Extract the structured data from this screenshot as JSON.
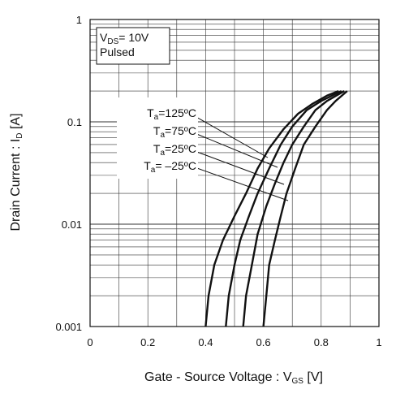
{
  "chart_data": {
    "type": "line",
    "xlabel": {
      "main": "Gate - Source Voltage : V",
      "sub": "GS",
      "unit": " [V]"
    },
    "ylabel": {
      "main": "Drain Current : I",
      "sub": "D",
      "unit": " [A]"
    },
    "xlim": [
      0,
      1
    ],
    "ylim": [
      0.001,
      1
    ],
    "yscale": "log",
    "grid": true,
    "x_ticks": [
      {
        "value": 0,
        "label": "0"
      },
      {
        "value": 0.2,
        "label": "0.2"
      },
      {
        "value": 0.4,
        "label": "0.4"
      },
      {
        "value": 0.6,
        "label": "0.6"
      },
      {
        "value": 0.8,
        "label": "0.8"
      },
      {
        "value": 1,
        "label": "1"
      }
    ],
    "y_ticks": [
      {
        "value": 1,
        "label": "1"
      },
      {
        "value": 0.1,
        "label": "0.1"
      },
      {
        "value": 0.01,
        "label": "0.01"
      },
      {
        "value": 0.001,
        "label": "0.001"
      }
    ],
    "conditions": {
      "line1_main": "V",
      "line1_sub": "DS",
      "line1_rest": "= 10V",
      "line2": "Pulsed"
    },
    "series": [
      {
        "name": "125ºC",
        "label_main": "T",
        "label_sub": "a",
        "label_rest": "=125ºC",
        "points": [
          [
            0.4,
            0.001
          ],
          [
            0.41,
            0.002
          ],
          [
            0.43,
            0.004
          ],
          [
            0.46,
            0.007
          ],
          [
            0.5,
            0.012
          ],
          [
            0.54,
            0.02
          ],
          [
            0.58,
            0.035
          ],
          [
            0.62,
            0.055
          ],
          [
            0.67,
            0.085
          ],
          [
            0.72,
            0.12
          ],
          [
            0.77,
            0.15
          ],
          [
            0.82,
            0.18
          ],
          [
            0.86,
            0.2
          ]
        ]
      },
      {
        "name": "75ºC",
        "label_main": "T",
        "label_sub": "a",
        "label_rest": "=75ºC",
        "points": [
          [
            0.47,
            0.001
          ],
          [
            0.48,
            0.002
          ],
          [
            0.5,
            0.004
          ],
          [
            0.52,
            0.007
          ],
          [
            0.55,
            0.012
          ],
          [
            0.58,
            0.02
          ],
          [
            0.62,
            0.035
          ],
          [
            0.66,
            0.06
          ],
          [
            0.7,
            0.09
          ],
          [
            0.75,
            0.13
          ],
          [
            0.8,
            0.16
          ],
          [
            0.87,
            0.2
          ]
        ]
      },
      {
        "name": "25ºC",
        "label_main": "T",
        "label_sub": "a",
        "label_rest": "=25ºC",
        "points": [
          [
            0.53,
            0.001
          ],
          [
            0.54,
            0.002
          ],
          [
            0.56,
            0.004
          ],
          [
            0.58,
            0.008
          ],
          [
            0.61,
            0.015
          ],
          [
            0.64,
            0.025
          ],
          [
            0.67,
            0.04
          ],
          [
            0.7,
            0.06
          ],
          [
            0.74,
            0.09
          ],
          [
            0.78,
            0.13
          ],
          [
            0.82,
            0.16
          ],
          [
            0.88,
            0.2
          ]
        ]
      },
      {
        "name": "-25ºC",
        "label_main": "T",
        "label_sub": "a",
        "label_rest": "= –25ºC",
        "points": [
          [
            0.6,
            0.001
          ],
          [
            0.61,
            0.002
          ],
          [
            0.62,
            0.004
          ],
          [
            0.64,
            0.007
          ],
          [
            0.66,
            0.012
          ],
          [
            0.68,
            0.02
          ],
          [
            0.71,
            0.035
          ],
          [
            0.74,
            0.06
          ],
          [
            0.78,
            0.09
          ],
          [
            0.82,
            0.13
          ],
          [
            0.85,
            0.16
          ],
          [
            0.89,
            0.2
          ]
        ]
      }
    ]
  }
}
